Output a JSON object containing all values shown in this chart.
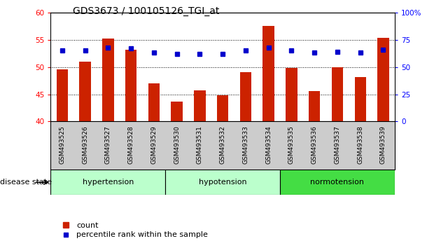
{
  "title": "GDS3673 / 100105126_TGI_at",
  "samples": [
    "GSM493525",
    "GSM493526",
    "GSM493527",
    "GSM493528",
    "GSM493529",
    "GSM493530",
    "GSM493531",
    "GSM493532",
    "GSM493533",
    "GSM493534",
    "GSM493535",
    "GSM493536",
    "GSM493537",
    "GSM493538",
    "GSM493539"
  ],
  "counts": [
    49.5,
    51.0,
    55.2,
    53.2,
    47.0,
    43.6,
    45.7,
    44.8,
    49.0,
    57.5,
    49.8,
    45.6,
    50.0,
    48.2,
    55.3
  ],
  "percentiles": [
    65,
    65,
    68,
    67,
    63,
    62,
    62,
    62,
    65,
    68,
    65,
    63,
    64,
    63,
    66
  ],
  "ylim_left": [
    40,
    60
  ],
  "ylim_right": [
    0,
    100
  ],
  "yticks_left": [
    40,
    45,
    50,
    55,
    60
  ],
  "yticks_right": [
    0,
    25,
    50,
    75,
    100
  ],
  "bar_color": "#cc2200",
  "dot_color": "#0000cc",
  "groups": [
    {
      "label": "hypertension",
      "start": 0,
      "end": 4,
      "color": "#bbffcc"
    },
    {
      "label": "hypotension",
      "start": 5,
      "end": 9,
      "color": "#bbffcc"
    },
    {
      "label": "normotension",
      "start": 10,
      "end": 14,
      "color": "#44dd44"
    }
  ],
  "disease_state_label": "disease state",
  "legend_count_label": "count",
  "legend_percentile_label": "percentile rank within the sample",
  "background_color": "#ffffff",
  "tick_area_bg": "#cccccc",
  "right_ytick_labels": [
    "0",
    "25",
    "50",
    "75",
    "100%"
  ],
  "hgrid_values": [
    45,
    50,
    55
  ],
  "bar_width": 0.5
}
